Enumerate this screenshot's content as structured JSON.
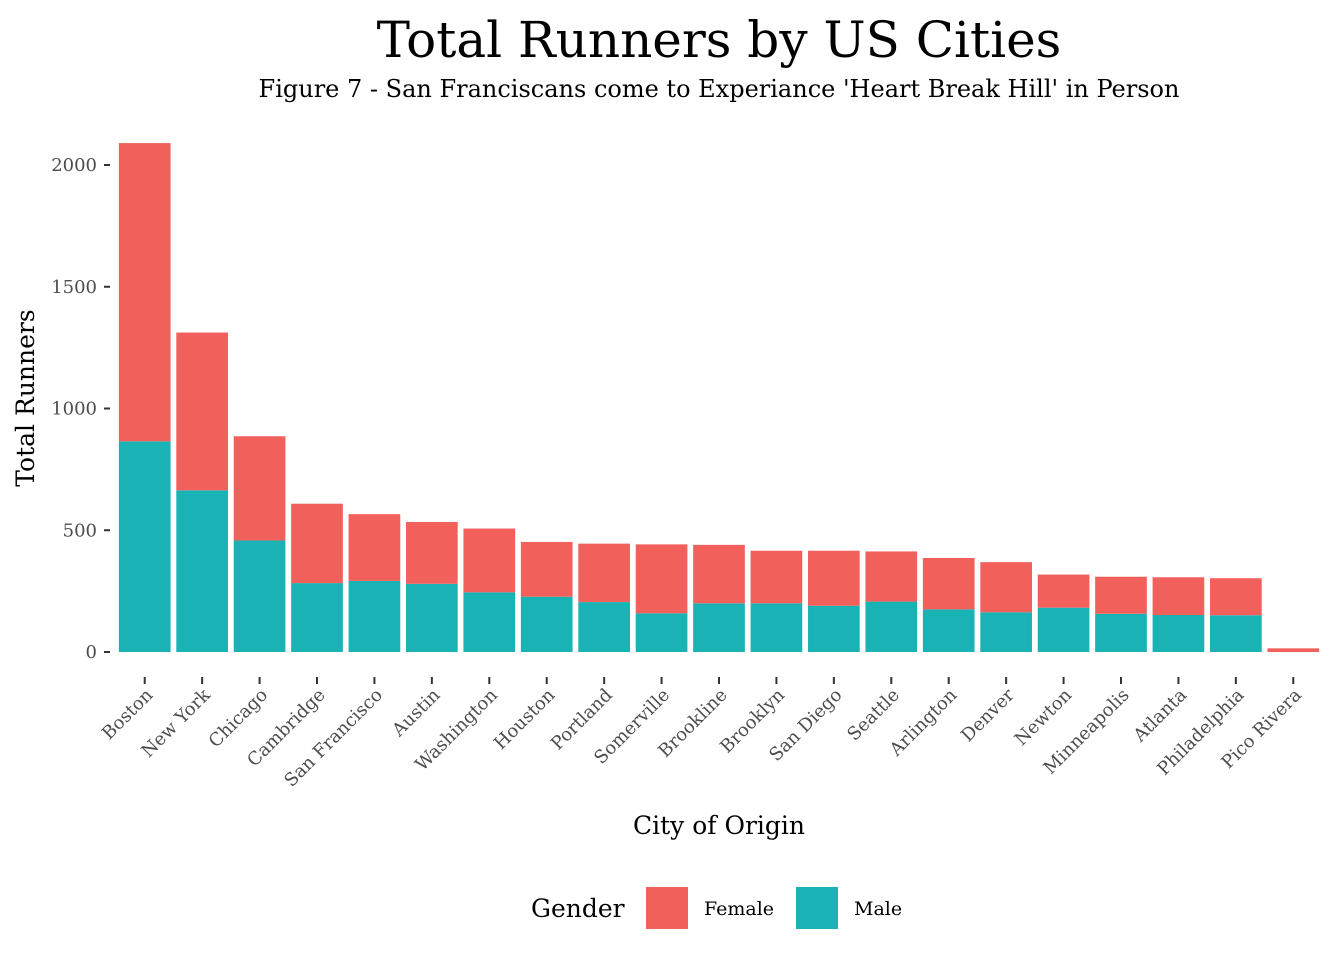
{
  "chart_data": {
    "type": "bar",
    "stacked": true,
    "title": "Total Runners by US Cities",
    "subtitle": "Figure 7 - San Franciscans come to Experiance 'Heart Break Hill' in Person",
    "xlabel": "City of Origin",
    "ylabel": "Total Runners",
    "ylim": [
      0,
      2200
    ],
    "yticks": [
      0,
      500,
      1000,
      1500,
      2000
    ],
    "grid": false,
    "legend": {
      "title": "Gender",
      "placement": "bottom"
    },
    "categories": [
      "Boston",
      "New York",
      "Chicago",
      "Cambridge",
      "San Francisco",
      "Austin",
      "Washington",
      "Houston",
      "Portland",
      "Somerville",
      "Brookline",
      "Brooklyn",
      "San Diego",
      "Seattle",
      "Arlington",
      "Denver",
      "Newton",
      "Minneapolis",
      "Atlanta",
      "Philadelphia",
      "Pico Rivera"
    ],
    "series": [
      {
        "name": "Male",
        "color": "#19B3B6",
        "values": [
          865,
          664,
          458,
          283,
          292,
          280,
          245,
          227,
          205,
          159,
          200,
          200,
          190,
          207,
          175,
          163,
          182,
          157,
          152,
          151,
          0
        ]
      },
      {
        "name": "Female",
        "color": "#F2605B",
        "values": [
          1225,
          648,
          428,
          326,
          274,
          254,
          262,
          225,
          240,
          283,
          240,
          216,
          226,
          206,
          211,
          206,
          136,
          152,
          155,
          152,
          15
        ]
      }
    ]
  }
}
